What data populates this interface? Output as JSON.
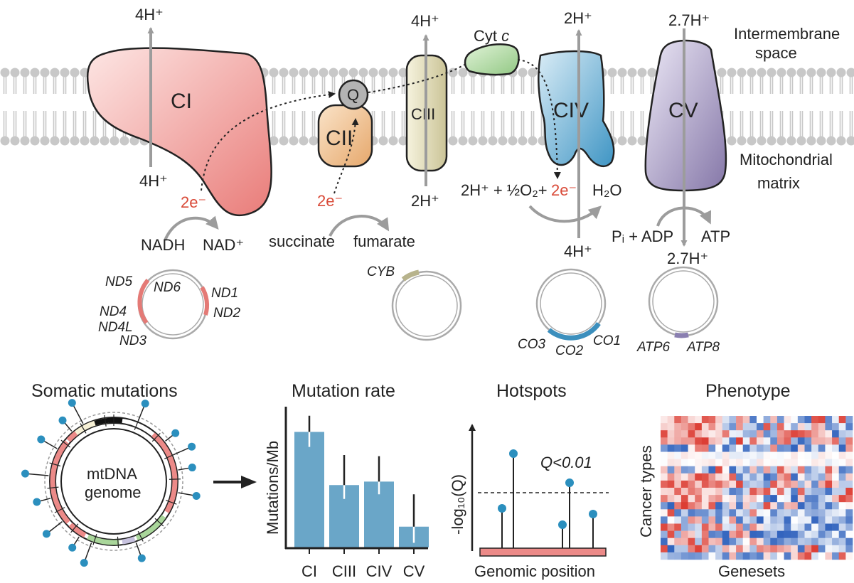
{
  "complexes": {
    "ci": {
      "name": "CI",
      "top": "4H⁺",
      "bottom": "4H⁺"
    },
    "cii": {
      "name": "CII"
    },
    "ciii": {
      "name": "CIII",
      "top": "4H⁺",
      "bottom": "2H⁺"
    },
    "civ": {
      "name": "CIV",
      "top": "2H⁺",
      "bottom": "4H⁺"
    },
    "cv": {
      "name": "CV",
      "top": "2.7H⁺",
      "bottom": "2.7H⁺"
    },
    "q": "Q",
    "cytc": "Cyt",
    "cytc_italic": "c"
  },
  "labels": {
    "intermembrane_1": "Intermembrane",
    "intermembrane_2": "space",
    "matrix_1": "Mitochondrial",
    "matrix_2": "matrix",
    "e_ci": "2e⁻",
    "e_cii": "2e⁻",
    "e_civ": "2e⁻",
    "nadh": "NADH",
    "nad": "NAD⁺",
    "succinate": "succinate",
    "fumarate": "fumarate",
    "civ_reaction": "2H⁺ + ½O₂+",
    "h2o": "H₂O",
    "pi_adp": "Pᵢ + ADP",
    "atp": "ATP"
  },
  "genes": {
    "ci": [
      "ND5",
      "ND6",
      "ND1",
      "ND4",
      "ND2",
      "ND4L",
      "ND3"
    ],
    "ciii": [
      "CYB"
    ],
    "civ": [
      "CO3",
      "CO2",
      "CO1"
    ],
    "cv": [
      "ATP6",
      "ATP8"
    ]
  },
  "panels": {
    "somatic": {
      "title": "Somatic mutations",
      "center_1": "mtDNA",
      "center_2": "genome"
    },
    "rate": {
      "title": "Mutation rate"
    },
    "hotspots": {
      "title": "Hotspots",
      "ylabel": "-log₁₀(Q)",
      "threshold": "Q<0.01",
      "xlabel": "Genomic position"
    },
    "phenotype": {
      "title": "Phenotype",
      "ylabel": "Cancer types",
      "xlabel": "Genesets"
    }
  },
  "chart_data": {
    "type": "bar",
    "title": "Mutation rate",
    "ylabel": "Mutations/Mb",
    "categories": [
      "CI",
      "CIII",
      "CIV",
      "CV"
    ],
    "values": [
      100,
      54,
      57,
      18
    ],
    "err_low": [
      13,
      12,
      11,
      14
    ],
    "err_high": [
      14,
      26,
      22,
      28
    ],
    "ylim": [
      0,
      120
    ],
    "grid": false,
    "color": "#6aa6c8"
  },
  "colors": {
    "ci": "#ec8a88",
    "cii": "#ebb47c",
    "ciii": "#ddd7b0",
    "civ": "#5fa7cf",
    "cv": "#9a8fb5",
    "cytc": "#a9d69a",
    "electron": "#d94a38",
    "arrow": "#9c9c9c"
  }
}
